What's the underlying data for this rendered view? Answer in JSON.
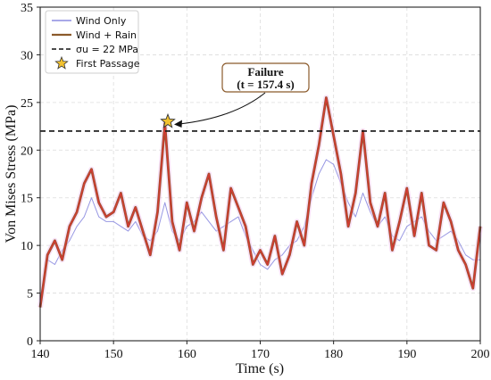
{
  "chart_data": {
    "type": "line",
    "xlabel": "Time (s)",
    "ylabel": "Von Mises Stress (MPa)",
    "xlim": [
      140,
      200
    ],
    "ylim": [
      0,
      35
    ],
    "xticks": [
      140,
      150,
      160,
      170,
      180,
      190,
      200
    ],
    "yticks": [
      0,
      5,
      10,
      15,
      20,
      25,
      30,
      35
    ],
    "grid": true,
    "legend_position": "top-left",
    "legend": [
      "Wind Only",
      "Wind + Rain",
      "σu = 22 MPa",
      "First Passage"
    ],
    "threshold": {
      "label": "σu = 22 MPa",
      "value": 22
    },
    "first_passage": {
      "label": "First Passage",
      "x": 157.4,
      "y": 23
    },
    "annotation": {
      "line1": "Failure",
      "line2": "(t = 157.4 s)"
    },
    "series": [
      {
        "name": "Wind Only",
        "color": "#8c8ce0",
        "x": [
          140,
          141,
          142,
          143,
          144,
          145,
          146,
          147,
          148,
          149,
          150,
          151,
          152,
          153,
          154,
          155,
          156,
          157,
          158,
          159,
          160,
          161,
          162,
          163,
          164,
          165,
          166,
          167,
          168,
          169,
          170,
          171,
          172,
          173,
          174,
          175,
          176,
          177,
          178,
          179,
          180,
          181,
          182,
          183,
          184,
          185,
          186,
          187,
          188,
          189,
          190,
          191,
          192,
          193,
          194,
          195,
          196,
          197,
          198,
          199,
          200
        ],
        "y": [
          4.5,
          8.5,
          8.0,
          9.5,
          10.5,
          12.0,
          13.0,
          15.0,
          13.0,
          12.5,
          12.5,
          12.0,
          11.5,
          12.5,
          11.0,
          10.5,
          11.5,
          14.5,
          11.5,
          10.5,
          12.0,
          12.5,
          13.5,
          12.5,
          11.5,
          12.0,
          12.5,
          13.0,
          11.0,
          9.5,
          8.0,
          7.5,
          8.5,
          9.0,
          10.0,
          10.5,
          12.0,
          15.0,
          17.5,
          19.0,
          18.5,
          16.5,
          14.5,
          13.0,
          15.5,
          13.5,
          12.0,
          13.0,
          11.0,
          10.5,
          12.0,
          12.5,
          13.0,
          11.5,
          10.5,
          11.0,
          11.5,
          10.5,
          9.0,
          8.5,
          8.5
        ]
      },
      {
        "name": "Wind + Rain",
        "color": "#d23a34",
        "x": [
          140,
          141,
          142,
          143,
          144,
          145,
          146,
          147,
          148,
          149,
          150,
          151,
          152,
          153,
          154,
          155,
          156,
          157,
          158,
          159,
          160,
          161,
          162,
          163,
          164,
          165,
          166,
          167,
          168,
          169,
          170,
          171,
          172,
          173,
          174,
          175,
          176,
          177,
          178,
          179,
          180,
          181,
          182,
          183,
          184,
          185,
          186,
          187,
          188,
          189,
          190,
          191,
          192,
          193,
          194,
          195,
          196,
          197,
          198,
          199,
          200
        ],
        "y": [
          3.5,
          9.0,
          10.5,
          8.5,
          12.0,
          13.5,
          16.5,
          18.0,
          14.5,
          13.0,
          13.5,
          15.5,
          12.0,
          14.0,
          11.5,
          9.0,
          13.5,
          22.8,
          12.5,
          9.5,
          14.5,
          11.5,
          15.0,
          17.5,
          13.0,
          9.5,
          16.0,
          14.0,
          12.0,
          8.0,
          9.5,
          8.0,
          11.0,
          7.0,
          9.0,
          12.5,
          10.0,
          16.5,
          20.5,
          25.5,
          21.5,
          17.5,
          12.0,
          15.5,
          22.0,
          14.5,
          12.0,
          15.5,
          9.5,
          12.5,
          16.0,
          11.0,
          15.5,
          10.0,
          9.5,
          14.5,
          12.5,
          9.5,
          8.0,
          5.5,
          12.0
        ]
      }
    ]
  }
}
